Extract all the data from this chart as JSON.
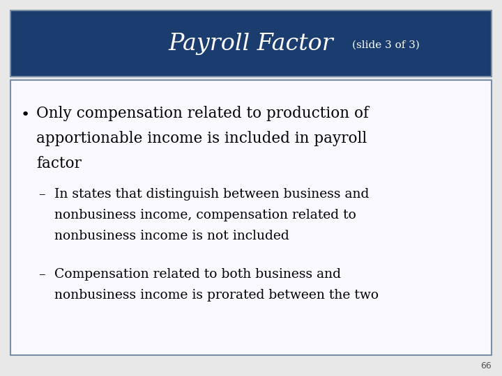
{
  "title_main": "Payroll Factor",
  "title_sub": "(slide 3 of 3)",
  "title_bg_color": "#1b3c6e",
  "title_text_color": "#ffffff",
  "title_sub_color": "#ffffff",
  "slide_bg_color": "#e8e8e8",
  "content_bg_color": "#f9f9ff",
  "border_color": "#7a8fa6",
  "text_color": "#000000",
  "page_number": "66",
  "page_num_color": "#555555",
  "main_bullet_lines": [
    "Only compensation related to production of",
    "apportionable income is included in payroll",
    "factor"
  ],
  "sub_bullet1_lines": [
    "In states that distinguish between business and",
    "nonbusiness income, compensation related to",
    "nonbusiness income is not included"
  ],
  "sub_bullet2_lines": [
    "Compensation related to both business and",
    "nonbusiness income is prorated between the two"
  ]
}
